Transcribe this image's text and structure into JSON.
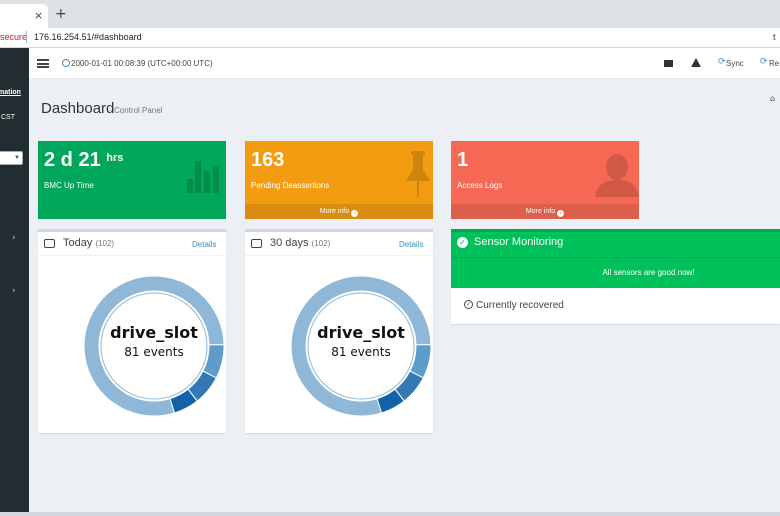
{
  "browser": {
    "tab_close": "×",
    "new_tab": "+",
    "security_text": "secure",
    "url": "176.16.254.51/#dashboard",
    "right_edge_text": "t"
  },
  "sidebar": {
    "text_top": "mation",
    "text_second": "CST",
    "arrow_glyph": "›"
  },
  "navbar": {
    "datetime": "2000-01-01 00:08:39 (UTC+00:00 UTC)",
    "sync_label": "Sync",
    "refresh_label": "Re",
    "sync_glyph": "⟳",
    "refresh_glyph": "⟳"
  },
  "header": {
    "title": "Dashboard",
    "subtitle": "Control Panel",
    "home_glyph": "⌂"
  },
  "info_boxes": {
    "uptime": {
      "value": "2 d 21",
      "unit": "hrs",
      "label": "BMC Up Time",
      "color": "#00a65a",
      "icon": "bar-chart-icon"
    },
    "pending": {
      "value": "163",
      "label": "Pending Deassertions",
      "footer": "More info",
      "color": "#f39c12",
      "icon": "pushpin-icon"
    },
    "access": {
      "value": "1",
      "label": "Access Logs",
      "footer": "More info",
      "color": "#f56954",
      "icon": "user-icon"
    },
    "footer_arrow": "›"
  },
  "today": {
    "title": "Today",
    "count": "(102)",
    "details": "Details",
    "center_name": "drive_slot",
    "center_events": "81 events",
    "segments": [
      81,
      8,
      7,
      6
    ]
  },
  "thirty_days": {
    "title": "30 days",
    "count": "(102)",
    "details": "Details",
    "center_name": "drive_slot",
    "center_events": "81 events",
    "segments": [
      81,
      8,
      7,
      6
    ]
  },
  "donut_colors": [
    "#8fb8d8",
    "#5d9ccb",
    "#3479b5",
    "#1361a8"
  ],
  "sensor": {
    "title": "Sensor Monitoring",
    "status": "All sensors are good now!",
    "recovered": "Currently recovered",
    "check_glyph": "✓",
    "recovered_glyph": "✓",
    "color": "#00c05a"
  }
}
